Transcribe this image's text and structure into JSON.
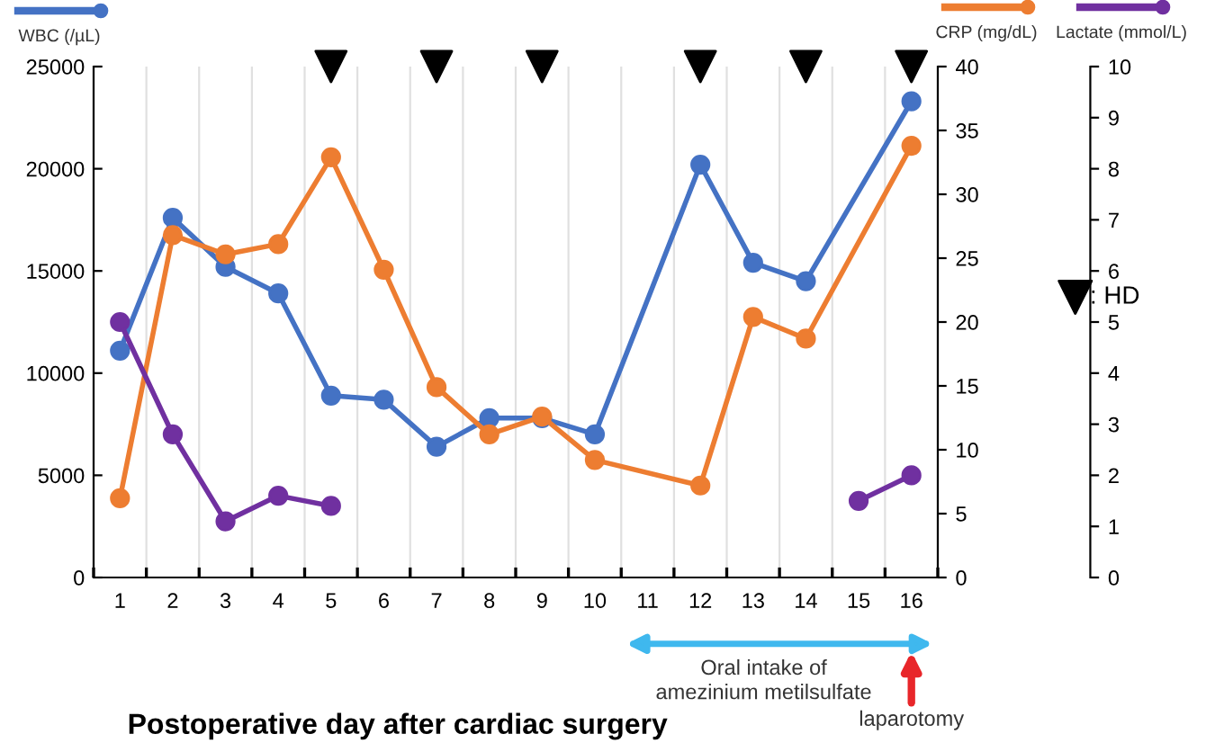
{
  "chart_data": {
    "type": "line",
    "xlabel": "Postoperative day after cardiac surgery",
    "categories": [
      "1",
      "2",
      "3",
      "4",
      "5",
      "6",
      "7",
      "8",
      "9",
      "10",
      "11",
      "12",
      "13",
      "14",
      "15",
      "16"
    ],
    "series": [
      {
        "name": "WBC (/µL)",
        "color": "#4472c4",
        "values": [
          11100,
          17600,
          15200,
          13900,
          8900,
          8700,
          6400,
          7800,
          7800,
          7000,
          null,
          20200,
          15400,
          14500,
          null,
          23300
        ]
      },
      {
        "name": "CRP (mg/dL)",
        "color": "#ed7d31",
        "axis": "y2",
        "values": [
          6.2,
          26.8,
          25.3,
          26.1,
          32.9,
          24.1,
          14.9,
          11.2,
          12.6,
          9.2,
          null,
          7.2,
          20.4,
          18.7,
          null,
          33.8
        ]
      },
      {
        "name": "Lactate (mmol/L)",
        "color": "#7030a0",
        "axis": "y3",
        "values": [
          5.0,
          2.8,
          1.1,
          1.6,
          1.4,
          null,
          null,
          null,
          null,
          null,
          null,
          null,
          null,
          null,
          1.5,
          2.0
        ]
      },
      {
        "name": ": HD",
        "type": "scatter",
        "color": "#000000",
        "marker": "triangle",
        "values": [
          null,
          null,
          null,
          null,
          25000,
          null,
          25000,
          null,
          25000,
          null,
          null,
          25000,
          null,
          25000,
          null,
          25000
        ]
      }
    ],
    "ylim": [
      0,
      25000
    ],
    "yticks": [
      0,
      5000,
      10000,
      15000,
      20000,
      25000
    ],
    "y2lim": [
      0,
      40
    ],
    "y2ticks": [
      0,
      5,
      10,
      15,
      20,
      25,
      30,
      35,
      40
    ],
    "y3lim": [
      0,
      10
    ],
    "y3ticks": [
      0,
      1,
      2,
      3,
      4,
      5,
      6,
      7,
      8,
      9,
      10
    ],
    "marker": "circle",
    "line_style": "solid",
    "grid": "x",
    "legend": "top",
    "annotations": [
      "Oral intake of\namezinium metilsulfate",
      "laparotomy"
    ]
  }
}
